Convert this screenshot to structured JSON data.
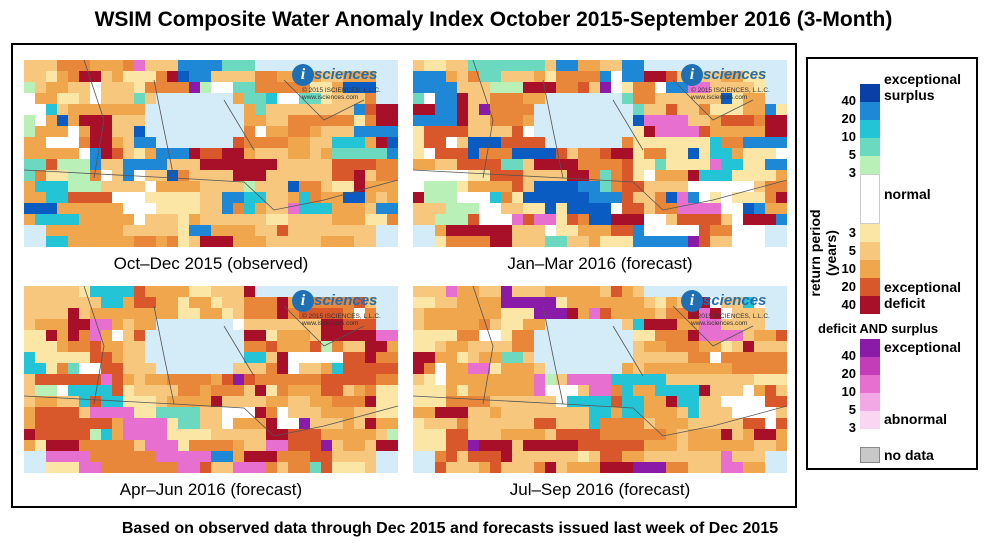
{
  "title": "WSIM Composite Water Anomaly Index October 2015-September 2016 (3-Month)",
  "footer": "Based on observed data through Dec 2015 and forecasts issued last week of Dec 2015",
  "logo": {
    "badge": "i",
    "word": "sciences",
    "line1": "© 2015 ISCIENCES, L.L.C.",
    "line2": "www.isciences.com"
  },
  "panels": [
    {
      "caption": "Oct–Dec 2015 (observed)",
      "palette": [
        "#f6c77d",
        "#f0a64d",
        "#e8873a",
        "#d9582b",
        "#a8102a",
        "#ffffff",
        "#fbe6a6",
        "#1e88d6",
        "#0b5cc2",
        "#23c4d6",
        "#6ad9c0",
        "#b8f0b8",
        "#e66fd0",
        "#8a1aa8"
      ],
      "weights": [
        18,
        14,
        9,
        5,
        7,
        6,
        8,
        5,
        3,
        4,
        3,
        2,
        2,
        1
      ]
    },
    {
      "caption": "Jan–Mar 2016 (forecast)",
      "palette": [
        "#f6c77d",
        "#f0a64d",
        "#e8873a",
        "#d9582b",
        "#a8102a",
        "#ffffff",
        "#fbe6a6",
        "#1e88d6",
        "#0b5cc2",
        "#23c4d6",
        "#6ad9c0",
        "#b8f0b8",
        "#e66fd0",
        "#8a1aa8"
      ],
      "weights": [
        14,
        12,
        9,
        6,
        10,
        6,
        10,
        7,
        4,
        4,
        3,
        2,
        2,
        1
      ]
    },
    {
      "caption": "Apr–Jun 2016 (forecast)",
      "palette": [
        "#f6c77d",
        "#f0a64d",
        "#e8873a",
        "#d9582b",
        "#a8102a",
        "#ffffff",
        "#fbe6a6",
        "#1e88d6",
        "#0b5cc2",
        "#23c4d6",
        "#6ad9c0",
        "#b8f0b8",
        "#e66fd0",
        "#8a1aa8"
      ],
      "weights": [
        20,
        18,
        13,
        7,
        7,
        5,
        7,
        1,
        0,
        2,
        2,
        1,
        3,
        2
      ]
    },
    {
      "caption": "Jul–Sep 2016 (forecast)",
      "palette": [
        "#f6c77d",
        "#f0a64d",
        "#e8873a",
        "#d9582b",
        "#a8102a",
        "#ffffff",
        "#fbe6a6",
        "#1e88d6",
        "#0b5cc2",
        "#23c4d6",
        "#6ad9c0",
        "#b8f0b8",
        "#e66fd0",
        "#8a1aa8"
      ],
      "weights": [
        26,
        18,
        10,
        5,
        5,
        4,
        12,
        0,
        0,
        1,
        1,
        1,
        3,
        1
      ]
    }
  ],
  "legend": {
    "axis_label": "return period (years)",
    "labels": {
      "exceptional_surplus": "exceptional surplus",
      "normal": "normal",
      "exceptional_deficit": "exceptional deficit",
      "both_heading": "deficit AND surplus",
      "both_exceptional": "exceptional",
      "both_abnormal": "abnormal",
      "no_data": "no data"
    },
    "surplus": [
      {
        "color": "#0b3fa8",
        "num": "40"
      },
      {
        "color": "#1e88d6",
        "num": "20"
      },
      {
        "color": "#23c4d6",
        "num": "10"
      },
      {
        "color": "#6ad9c0",
        "num": "5"
      },
      {
        "color": "#b8f0b8",
        "num": "3"
      }
    ],
    "normal_color": "#ffffff",
    "deficit": [
      {
        "color": "#fbe6a6",
        "num": "3"
      },
      {
        "color": "#f6c77d",
        "num": "5"
      },
      {
        "color": "#f0a64d",
        "num": "10"
      },
      {
        "color": "#d9582b",
        "num": "20"
      },
      {
        "color": "#a8102a",
        "num": "40"
      }
    ],
    "both": [
      {
        "color": "#8a1aa8",
        "num": "40"
      },
      {
        "color": "#c43db8",
        "num": "20"
      },
      {
        "color": "#e66fd0",
        "num": "10"
      },
      {
        "color": "#f3a8e6",
        "num": "5"
      },
      {
        "color": "#fbd6f3",
        "num": "3"
      }
    ],
    "no_data_color": "#c8c8c8"
  }
}
